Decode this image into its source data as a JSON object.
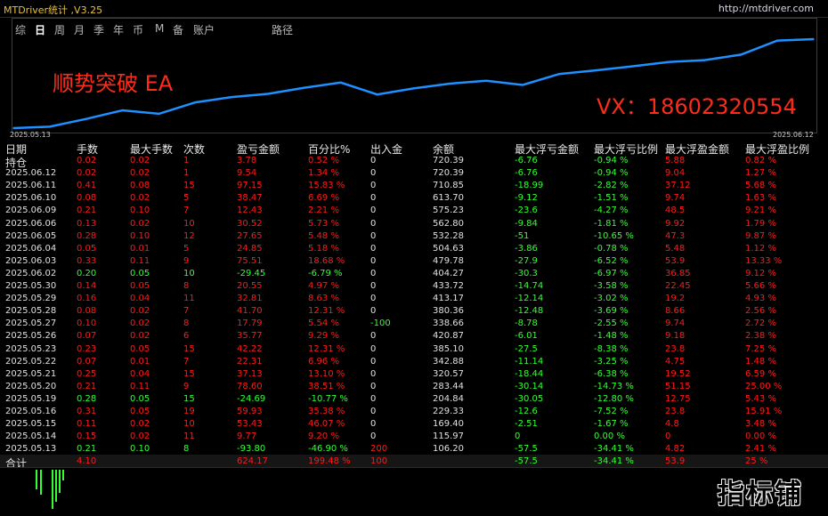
{
  "title": "MTDriver统计 ,V3.25",
  "site": "http://mtdriver.com",
  "tabs": [
    "综",
    "日",
    "周",
    "月",
    "季",
    "年",
    "币",
    "M",
    "备",
    "账户",
    "路径"
  ],
  "active_tab": "日",
  "overlay": {
    "ea_name": "顺势突破 EA",
    "contact": "VX：18602320554"
  },
  "logo": "指标铺",
  "chart_data": {
    "type": "line",
    "x_start": "2025.05.13",
    "x_end": "2025.06.12",
    "x": [
      "2025.05.13",
      "2025.05.14",
      "2025.05.15",
      "2025.05.16",
      "2025.05.19",
      "2025.05.20",
      "2025.05.21",
      "2025.05.22",
      "2025.05.23",
      "2025.05.26",
      "2025.05.27",
      "2025.05.28",
      "2025.05.29",
      "2025.05.30",
      "2025.06.02",
      "2025.06.03",
      "2025.06.04",
      "2025.06.05",
      "2025.06.06",
      "2025.06.09",
      "2025.06.10",
      "2025.06.11",
      "2025.06.12"
    ],
    "values": [
      106.2,
      115.97,
      169.4,
      229.33,
      204.84,
      283.44,
      320.57,
      342.88,
      385.1,
      420.87,
      338.66,
      380.36,
      413.17,
      433.72,
      404.27,
      479.78,
      504.63,
      532.28,
      562.8,
      575.23,
      613.7,
      710.85,
      720.39
    ],
    "color": "#1e90ff"
  },
  "table": {
    "headers": [
      "日期",
      "手数",
      "最大手数",
      "次数",
      "盈亏金额",
      "百分比%",
      "出入金",
      "余额",
      "最大浮亏金额",
      "最大浮亏比例",
      "最大浮盈金额",
      "最大浮盈比例"
    ],
    "rows": [
      [
        "持仓",
        "0.02",
        "0.02",
        "1",
        "3.78",
        "0.52 %",
        "0",
        "720.39",
        "-6.76",
        "-0.94 %",
        "5.88",
        "0.82 %"
      ],
      [
        "2025.06.12",
        "0.02",
        "0.02",
        "1",
        "9.54",
        "1.34 %",
        "0",
        "720.39",
        "-6.76",
        "-0.94 %",
        "9.04",
        "1.27 %"
      ],
      [
        "2025.06.11",
        "0.41",
        "0.08",
        "15",
        "97.15",
        "15.83 %",
        "0",
        "710.85",
        "-18.99",
        "-2.82 %",
        "37.12",
        "5.68 %"
      ],
      [
        "2025.06.10",
        "0.08",
        "0.02",
        "5",
        "38.47",
        "6.69 %",
        "0",
        "613.70",
        "-9.12",
        "-1.51 %",
        "9.74",
        "1.63 %"
      ],
      [
        "2025.06.09",
        "0.21",
        "0.10",
        "7",
        "12.43",
        "2.21 %",
        "0",
        "575.23",
        "-23.6",
        "-4.27 %",
        "48.5",
        "9.21 %"
      ],
      [
        "2025.06.06",
        "0.13",
        "0.02",
        "10",
        "30.52",
        "5.73 %",
        "0",
        "562.80",
        "-9.84",
        "-1.81 %",
        "9.92",
        "1.79 %"
      ],
      [
        "2025.06.05",
        "0.28",
        "0.10",
        "12",
        "27.65",
        "5.48 %",
        "0",
        "532.28",
        "-51",
        "-10.65 %",
        "47.3",
        "9.87 %"
      ],
      [
        "2025.06.04",
        "0.05",
        "0.01",
        "5",
        "24.85",
        "5.18 %",
        "0",
        "504.63",
        "-3.86",
        "-0.78 %",
        "5.48",
        "1.12 %"
      ],
      [
        "2025.06.03",
        "0.33",
        "0.11",
        "9",
        "75.51",
        "18.68 %",
        "0",
        "479.78",
        "-27.9",
        "-6.52 %",
        "53.9",
        "13.33 %"
      ],
      [
        "2025.06.02",
        "0.20",
        "0.05",
        "10",
        "-29.45",
        "-6.79 %",
        "0",
        "404.27",
        "-30.3",
        "-6.97 %",
        "36.85",
        "9.12 %"
      ],
      [
        "2025.05.30",
        "0.14",
        "0.05",
        "8",
        "20.55",
        "4.97 %",
        "0",
        "433.72",
        "-14.74",
        "-3.58 %",
        "22.45",
        "5.66 %"
      ],
      [
        "2025.05.29",
        "0.16",
        "0.04",
        "11",
        "32.81",
        "8.63 %",
        "0",
        "413.17",
        "-12.14",
        "-3.02 %",
        "19.2",
        "4.93 %"
      ],
      [
        "2025.05.28",
        "0.08",
        "0.02",
        "7",
        "41.70",
        "12.31 %",
        "0",
        "380.36",
        "-12.48",
        "-3.69 %",
        "8.66",
        "2.56 %"
      ],
      [
        "2025.05.27",
        "0.10",
        "0.02",
        "8",
        "17.79",
        "5.54 %",
        "-100",
        "338.66",
        "-8.78",
        "-2.55 %",
        "9.74",
        "2.72 %"
      ],
      [
        "2025.05.26",
        "0.07",
        "0.02",
        "6",
        "35.77",
        "9.29 %",
        "0",
        "420.87",
        "-6.01",
        "-1.48 %",
        "9.18",
        "2.38 %"
      ],
      [
        "2025.05.23",
        "0.23",
        "0.05",
        "15",
        "42.22",
        "12.31 %",
        "0",
        "385.10",
        "-27.5",
        "-8.38 %",
        "23.8",
        "7.25 %"
      ],
      [
        "2025.05.22",
        "0.07",
        "0.01",
        "7",
        "22.31",
        "6.96 %",
        "0",
        "342.88",
        "-11.14",
        "-3.25 %",
        "4.75",
        "1.48 %"
      ],
      [
        "2025.05.21",
        "0.25",
        "0.04",
        "15",
        "37.13",
        "13.10 %",
        "0",
        "320.57",
        "-18.44",
        "-6.38 %",
        "19.52",
        "6.59 %"
      ],
      [
        "2025.05.20",
        "0.21",
        "0.11",
        "9",
        "78.60",
        "38.51 %",
        "0",
        "283.44",
        "-30.14",
        "-14.73 %",
        "51.15",
        "25.00 %"
      ],
      [
        "2025.05.19",
        "0.28",
        "0.05",
        "15",
        "-24.69",
        "-10.77 %",
        "0",
        "204.84",
        "-30.05",
        "-12.80 %",
        "12.75",
        "5.43 %"
      ],
      [
        "2025.05.16",
        "0.31",
        "0.05",
        "19",
        "59.93",
        "35.38 %",
        "0",
        "229.33",
        "-12.6",
        "-7.52 %",
        "23.8",
        "15.91 %"
      ],
      [
        "2025.05.15",
        "0.11",
        "0.02",
        "10",
        "53.43",
        "46.07 %",
        "0",
        "169.40",
        "-2.51",
        "-1.67 %",
        "4.8",
        "3.48 %"
      ],
      [
        "2025.05.14",
        "0.15",
        "0.02",
        "11",
        "9.77",
        "9.20 %",
        "0",
        "115.97",
        "0",
        "0.00 %",
        "0",
        "0.00 %"
      ],
      [
        "2025.05.13",
        "0.21",
        "0.10",
        "8",
        "-93.80",
        "-46.90 %",
        "200",
        "106.20",
        "-57.5",
        "-34.41 %",
        "4.82",
        "2.41 %"
      ],
      [
        "合计",
        "4.10",
        "",
        "",
        "624.17",
        "199.48 %",
        "100",
        "",
        "-57.5",
        "-34.41 %",
        "53.9",
        "25 %"
      ]
    ]
  },
  "colors": {
    "profit": "#ff1a1a",
    "loss": "#33ff33",
    "neutral": "#e0e0e0",
    "title": "#e8c13a",
    "line": "#1e90ff"
  }
}
